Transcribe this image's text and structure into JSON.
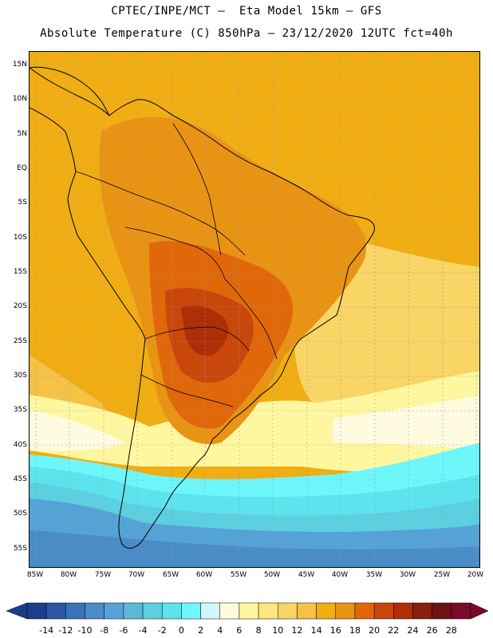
{
  "title_line1": "CPTEC/INPE/MCT –  Eta Model 15km – GFS",
  "title_line2": "Absolute Temperature (C) 850hPa – 23/12/2020 12UTC fct=40h",
  "lat_labels": [
    "15N",
    "10N",
    "5N",
    "EQ",
    "5S",
    "10S",
    "15S",
    "20S",
    "25S",
    "30S",
    "35S",
    "40S",
    "45S",
    "50S",
    "55S"
  ],
  "lon_labels": [
    "85W",
    "80W",
    "75W",
    "70W",
    "65W",
    "60W",
    "55W",
    "50W",
    "45W",
    "40W",
    "35W",
    "30W",
    "25W",
    "20W"
  ],
  "colorbar": {
    "labels": [
      "-14",
      "-12",
      "-10",
      "-8",
      "-6",
      "-4",
      "-2",
      "0",
      "2",
      "4",
      "6",
      "8",
      "10",
      "12",
      "14",
      "16",
      "18",
      "20",
      "22",
      "24",
      "26",
      "28"
    ],
    "colors": [
      "#1e3c8c",
      "#2c57a3",
      "#3b73b8",
      "#4a8cc8",
      "#55a3d6",
      "#5cbad6",
      "#5ccfe0",
      "#5de3ee",
      "#6ef7fb",
      "#d2f6fc",
      "#fffbe0",
      "#fff7a0",
      "#fde77e",
      "#f8d564",
      "#f3c247",
      "#f0ad14",
      "#e99315",
      "#e0680a",
      "#c9470a",
      "#ad2f08",
      "#8a1f10",
      "#6c1414",
      "#7b0a2a"
    ]
  }
}
